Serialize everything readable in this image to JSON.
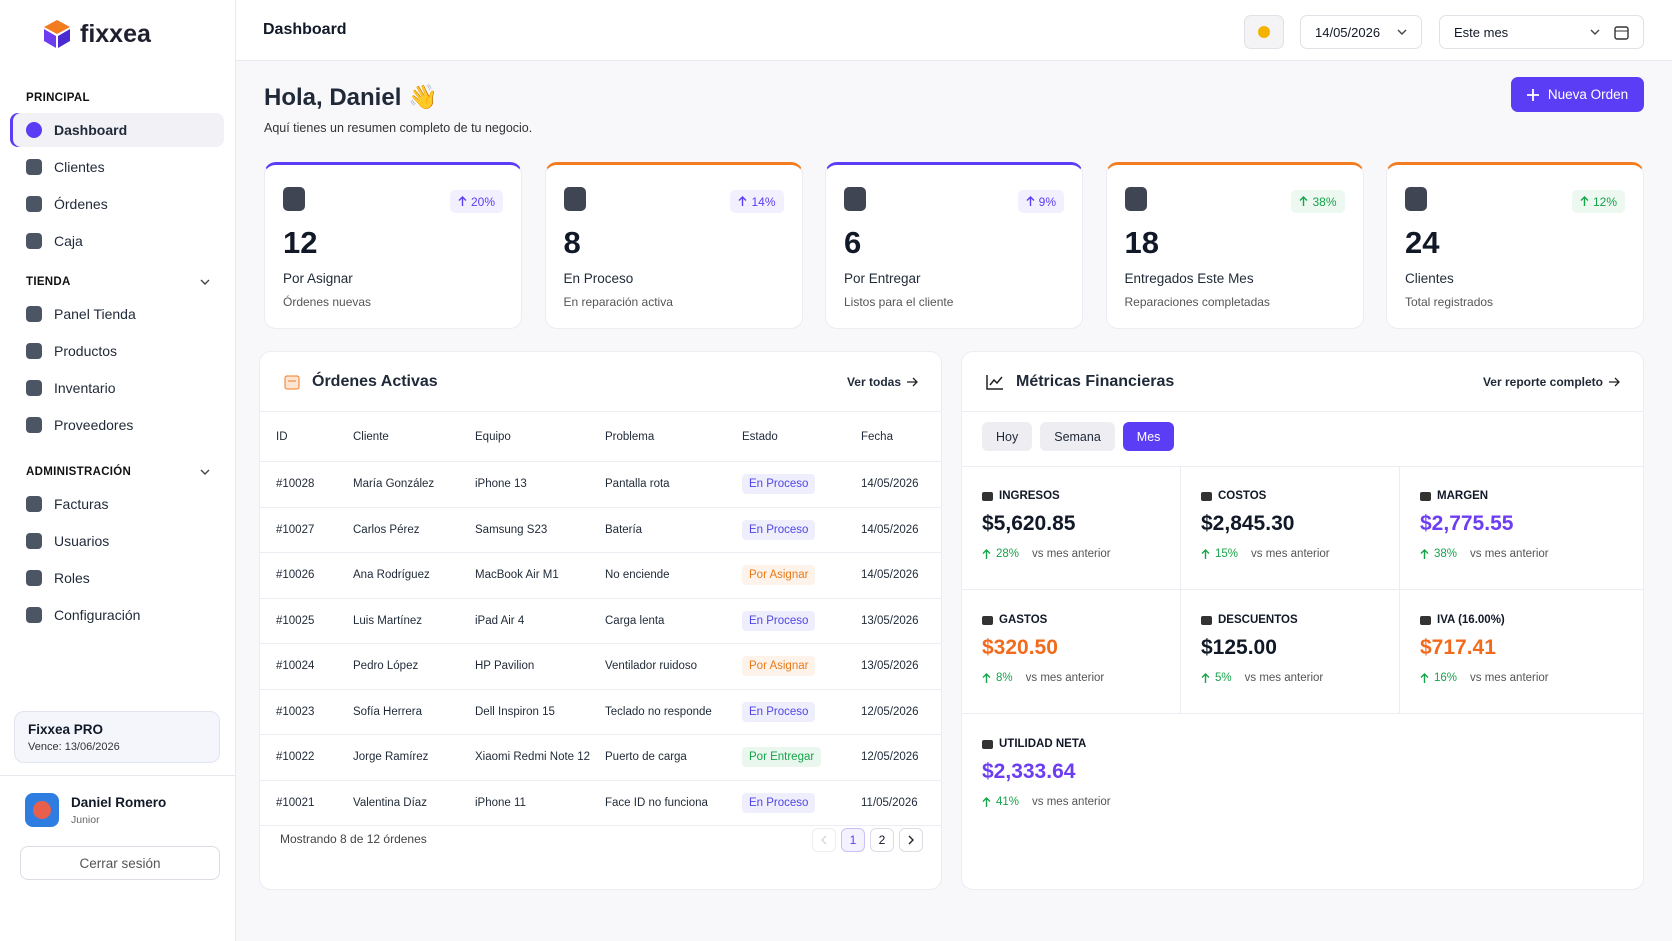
{
  "brand": "fixxea",
  "topbar": {
    "title": "Dashboard",
    "date": "14/05/2026",
    "period": "Este mes"
  },
  "sidebar": {
    "sections": [
      {
        "title": "PRINCIPAL",
        "items": [
          "Dashboard",
          "Clientes",
          "Órdenes",
          "Caja"
        ]
      },
      {
        "title": "TIENDA",
        "items": [
          "Panel Tienda",
          "Productos",
          "Inventario",
          "Proveedores"
        ]
      },
      {
        "title": "ADMINISTRACIÓN",
        "items": [
          "Facturas",
          "Usuarios",
          "Roles",
          "Configuración"
        ]
      }
    ],
    "plan": {
      "name": "Fixxea PRO",
      "expiry": "Vence: 13/06/2026"
    },
    "user": {
      "name": "Daniel Romero",
      "role": "Junior"
    },
    "logout": "Cerrar sesión"
  },
  "greeting": {
    "title": "Hola, Daniel 👋",
    "subtitle": "Aquí tienes un resumen completo de tu negocio."
  },
  "new_order": "Nueva Orden",
  "stats": [
    {
      "change": "20%",
      "value": 12,
      "label": "Por Asignar",
      "sub": "Órdenes nuevas",
      "accent": "#5b3df5",
      "badge_color": "#5b3df5"
    },
    {
      "change": "14%",
      "value": 8,
      "label": "En Proceso",
      "sub": "En reparación activa",
      "accent": "#f47c20",
      "badge_color": "#5b3df5"
    },
    {
      "change": "9%",
      "value": 6,
      "label": "Por Entregar",
      "sub": "Listos para el cliente",
      "accent": "#5b3df5",
      "badge_color": "#5b3df5"
    },
    {
      "change": "38%",
      "value": 18,
      "label": "Entregados Este Mes",
      "sub": "Reparaciones completadas",
      "accent": "#f47c20",
      "badge_color": "#16a34a"
    },
    {
      "change": "12%",
      "value": 24,
      "label": "Clientes",
      "sub": "Total registrados",
      "accent": "#f47c20",
      "badge_color": "#16a34a"
    }
  ],
  "orders": {
    "title": "Órdenes Activas",
    "link": "Ver todas",
    "columns": [
      "ID",
      "Cliente",
      "Equipo",
      "Problema",
      "Estado",
      "Fecha"
    ],
    "rows": [
      {
        "id": "#10028",
        "client": "María González",
        "device": "iPhone 13",
        "problem": "Pantalla rota",
        "status": "En Proceso",
        "status_color": "#4f46e5",
        "date": "14/05/2026"
      },
      {
        "id": "#10027",
        "client": "Carlos Pérez",
        "device": "Samsung S23",
        "problem": "Batería",
        "status": "En Proceso",
        "status_color": "#4f46e5",
        "date": "14/05/2026"
      },
      {
        "id": "#10026",
        "client": "Ana Rodríguez",
        "device": "MacBook Air M1",
        "problem": "No enciende",
        "status": "Por Asignar",
        "status_color": "#ea7a18",
        "date": "14/05/2026"
      },
      {
        "id": "#10025",
        "client": "Luis Martínez",
        "device": "iPad Air 4",
        "problem": "Carga lenta",
        "status": "En Proceso",
        "status_color": "#4f46e5",
        "date": "13/05/2026"
      },
      {
        "id": "#10024",
        "client": "Pedro López",
        "device": "HP Pavilion",
        "problem": "Ventilador ruidoso",
        "status": "Por Asignar",
        "status_color": "#ea7a18",
        "date": "13/05/2026"
      },
      {
        "id": "#10023",
        "client": "Sofía Herrera",
        "device": "Dell Inspiron 15",
        "problem": "Teclado no responde",
        "status": "En Proceso",
        "status_color": "#4f46e5",
        "date": "12/05/2026"
      },
      {
        "id": "#10022",
        "client": "Jorge Ramírez",
        "device": "Xiaomi Redmi Note 12",
        "problem": "Puerto de carga",
        "status": "Por Entregar",
        "status_color": "#16a34a",
        "date": "12/05/2026"
      },
      {
        "id": "#10021",
        "client": "Valentina Díaz",
        "device": "iPhone 11",
        "problem": "Face ID no funciona",
        "status": "En Proceso",
        "status_color": "#4f46e5",
        "date": "11/05/2026"
      }
    ],
    "footer": "Mostrando 8 de 12 órdenes",
    "pages": [
      "1",
      "2"
    ]
  },
  "finance": {
    "title": "Métricas Financieras",
    "link": "Ver reporte completo",
    "tabs": [
      "Hoy",
      "Semana",
      "Mes"
    ],
    "metrics": [
      {
        "label": "INGRESOS",
        "value": "$5,620.85",
        "change": "28%",
        "note": "vs mes anterior",
        "color": "#111827"
      },
      {
        "label": "COSTOS",
        "value": "$2,845.30",
        "change": "15%",
        "note": "vs mes anterior",
        "color": "#111827"
      },
      {
        "label": "MARGEN",
        "value": "$2,775.55",
        "change": "38%",
        "note": "vs mes anterior",
        "color": "#6d3df2"
      },
      {
        "label": "GASTOS",
        "value": "$320.50",
        "change": "8%",
        "note": "vs mes anterior",
        "color": "#f26b1d"
      },
      {
        "label": "DESCUENTOS",
        "value": "$125.00",
        "change": "5%",
        "note": "vs mes anterior",
        "color": "#111827"
      },
      {
        "label": "IVA (16.00%)",
        "value": "$717.41",
        "change": "16%",
        "note": "vs mes anterior",
        "color": "#f26b1d"
      },
      {
        "label": "UTILIDAD NETA",
        "value": "$2,333.64",
        "change": "41%",
        "note": "vs mes anterior",
        "color": "#6d3df2"
      }
    ]
  }
}
